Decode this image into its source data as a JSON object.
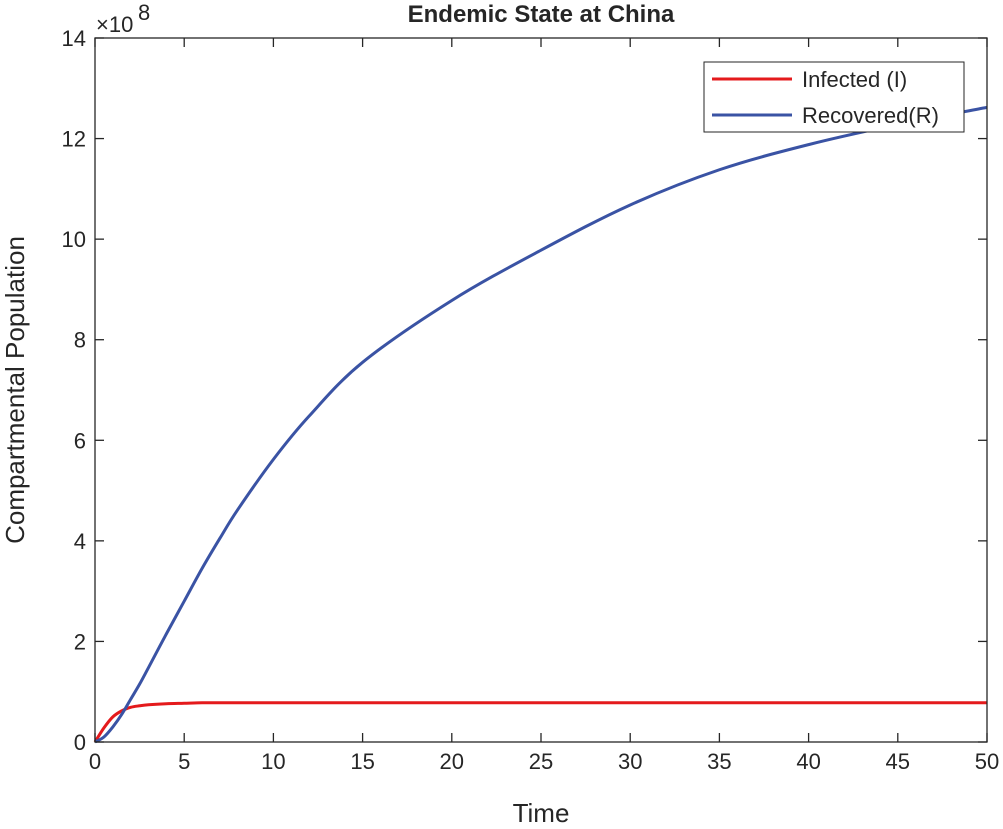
{
  "chart_data": {
    "type": "line",
    "title": "Endemic State at China",
    "xlabel": "Time",
    "ylabel": "Compartmental Population",
    "xlim": [
      0,
      50
    ],
    "ylim": [
      0,
      14
    ],
    "y_multiplier_label": "×10",
    "y_multiplier_exponent": "8",
    "grid": false,
    "legend_position": "top-right",
    "x_ticks": [
      0,
      5,
      10,
      15,
      20,
      25,
      30,
      35,
      40,
      45,
      50
    ],
    "y_ticks": [
      0,
      2,
      4,
      6,
      8,
      10,
      12,
      14
    ],
    "x": [
      0,
      0.5,
      1,
      1.5,
      2,
      2.5,
      3,
      4,
      5,
      6,
      7,
      8,
      10,
      12,
      15,
      20,
      25,
      30,
      35,
      40,
      45,
      50
    ],
    "series": [
      {
        "name": "Infected (I)",
        "color": "#e41a1c",
        "values": [
          0,
          0.28,
          0.5,
          0.62,
          0.69,
          0.72,
          0.74,
          0.76,
          0.77,
          0.78,
          0.78,
          0.78,
          0.78,
          0.78,
          0.78,
          0.78,
          0.78,
          0.78,
          0.78,
          0.78,
          0.78,
          0.78
        ]
      },
      {
        "name": "Recovered(R)",
        "color": "#3a53a4",
        "values": [
          0,
          0.1,
          0.3,
          0.55,
          0.85,
          1.15,
          1.48,
          2.15,
          2.8,
          3.45,
          4.05,
          4.62,
          5.62,
          6.48,
          7.55,
          8.78,
          9.78,
          10.68,
          11.38,
          11.88,
          12.28,
          12.62
        ]
      }
    ]
  }
}
